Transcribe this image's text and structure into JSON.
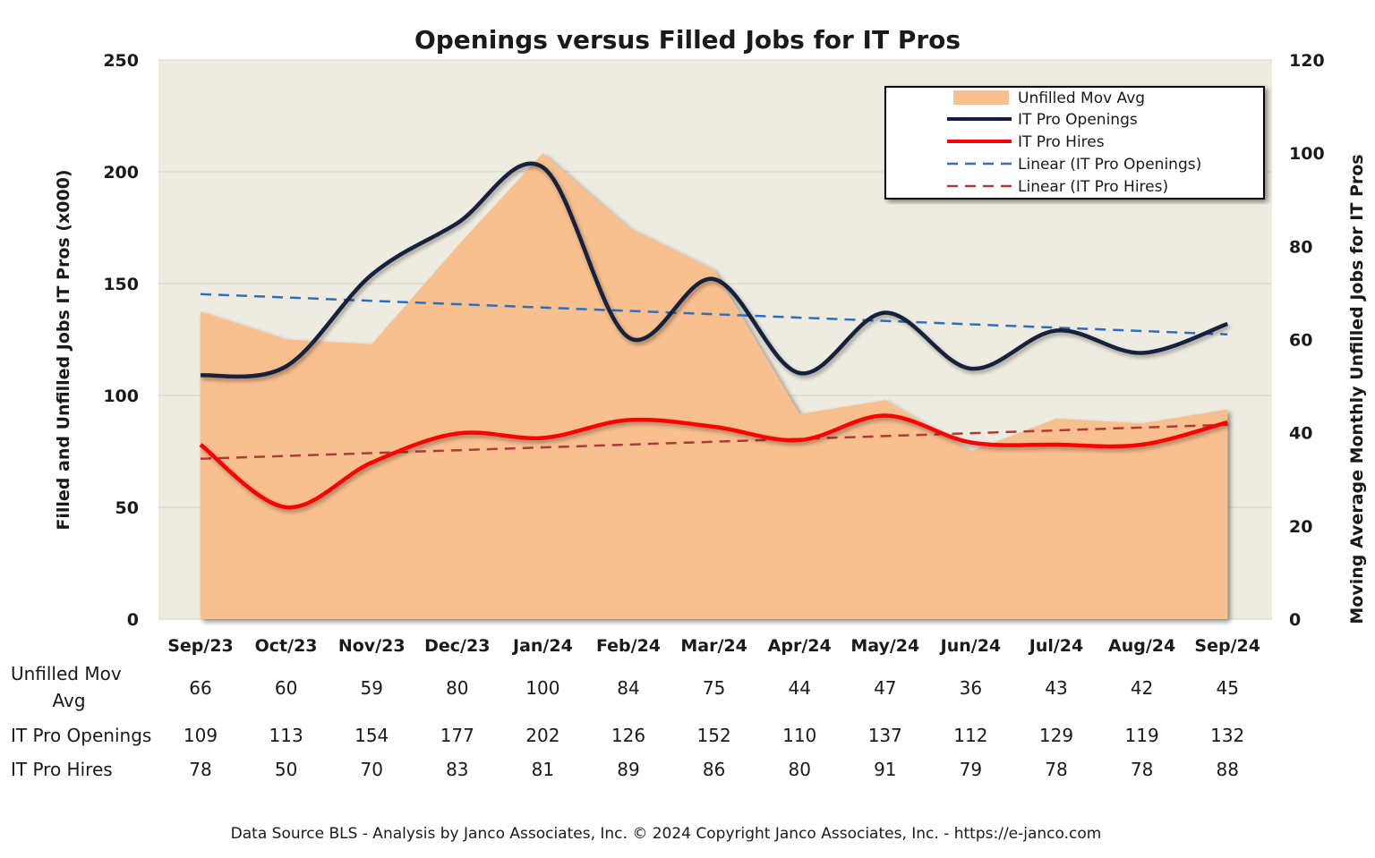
{
  "chart_data": {
    "type": "line",
    "title": "Openings versus Filled Jobs for IT Pros",
    "ylabel": "Filled and Unfilled Jobs  IT Pros (x000)",
    "y2label": "Moving Average Monthly Unfilled Jobs for IT Pros",
    "ylim": [
      0,
      250
    ],
    "y2lim": [
      0,
      120
    ],
    "yticks": [
      "0",
      "50",
      "100",
      "150",
      "200",
      "250"
    ],
    "y2ticks": [
      "0",
      "20",
      "40",
      "60",
      "80",
      "100",
      "120"
    ],
    "categories": [
      "Sep/23",
      "Oct/23",
      "Nov/23",
      "Dec/23",
      "Jan/24",
      "Feb/24",
      "Mar/24",
      "Apr/24",
      "May/24",
      "Jun/24",
      "Jul/24",
      "Aug/24",
      "Sep/24"
    ],
    "series": [
      {
        "name": "Unfilled Mov Avg",
        "type": "area",
        "axis": "right",
        "color": "#f8bf8f",
        "values": [
          66,
          60,
          59,
          80,
          100,
          84,
          75,
          44,
          47,
          36,
          43,
          42,
          45
        ]
      },
      {
        "name": "IT Pro Openings",
        "type": "line",
        "axis": "left",
        "color": "#14213d",
        "values": [
          109,
          113,
          154,
          177,
          202,
          126,
          152,
          110,
          137,
          112,
          129,
          119,
          132
        ]
      },
      {
        "name": "IT Pro Hires",
        "type": "line",
        "axis": "left",
        "color": "#ff0000",
        "values": [
          78,
          50,
          70,
          83,
          81,
          89,
          86,
          80,
          91,
          79,
          78,
          78,
          88
        ]
      }
    ],
    "trendlines": [
      {
        "name": "Linear (IT Pro Openings)",
        "color": "#2e6fbd"
      },
      {
        "name": "Linear (IT Pro Hires)",
        "color": "#b03a3a"
      }
    ],
    "table_rows": [
      {
        "label": "Unfilled Mov Avg",
        "series_index": 0
      },
      {
        "label": "IT Pro Openings",
        "series_index": 1
      },
      {
        "label": "IT Pro Hires",
        "series_index": 2
      }
    ],
    "legend_position": "top-right",
    "grid": true
  },
  "footer": "Data Source BLS - Analysis by Janco Associates, Inc. © 2024 Copyright Janco Associates, Inc. - https://e-janco.com"
}
